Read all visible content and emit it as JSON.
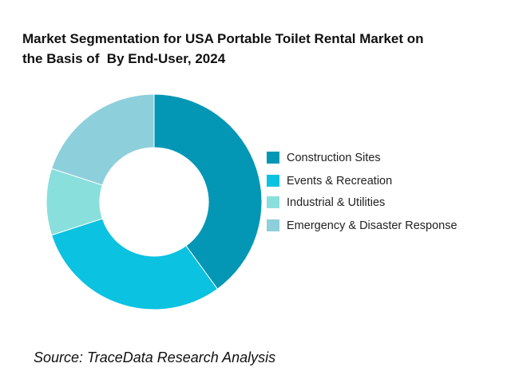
{
  "title_line1": "Market Segmentation for USA Portable Toilet Rental Market on",
  "title_line2": "the Basis of  By End-User, 2024",
  "source": "Source: TraceData Research Analysis",
  "chart_data": {
    "type": "pie",
    "style": "donut",
    "title": "Market Segmentation for USA Portable Toilet Rental Market on the Basis of  By End-User, 2024",
    "categories": [
      "Construction Sites",
      "Events & Recreation",
      "Industrial & Utilities",
      "Emergency & Disaster Response"
    ],
    "values": [
      40,
      30,
      10,
      20
    ],
    "unit": "%",
    "colors": [
      "#0397b5",
      "#0bc2e0",
      "#89dfdc",
      "#8ecfdc"
    ],
    "legend_position": "right"
  }
}
